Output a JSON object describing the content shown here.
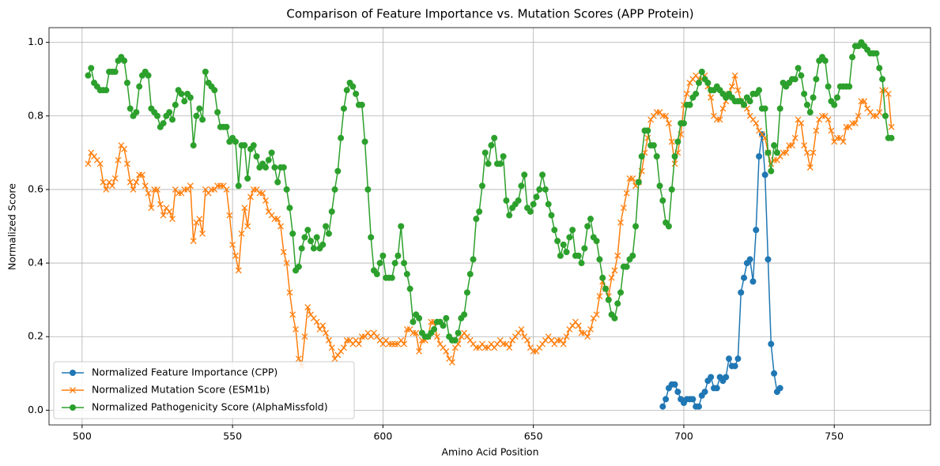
{
  "chart_data": {
    "type": "line",
    "title": "Comparison of Feature Importance vs. Mutation Scores (APP Protein)",
    "x_label": "Amino Acid Position",
    "y_label": "Normalized Score",
    "xlim": [
      489,
      782
    ],
    "ylim": [
      -0.04,
      1.04
    ],
    "xticks": [
      500,
      550,
      600,
      650,
      700,
      750
    ],
    "yticks": [
      {
        "value": 0,
        "label": "0.0"
      },
      {
        "value": 0.2,
        "label": "0.2"
      },
      {
        "value": 0.4,
        "label": "0.4"
      },
      {
        "value": 0.6,
        "label": "0.6"
      },
      {
        "value": 0.8,
        "label": "0.8"
      },
      {
        "value": 1,
        "label": "1.0"
      }
    ],
    "grid": true,
    "legend": "lower left",
    "x": [
      502,
      503,
      504,
      505,
      506,
      507,
      508,
      509,
      510,
      511,
      512,
      513,
      514,
      515,
      516,
      517,
      518,
      519,
      520,
      521,
      522,
      523,
      524,
      525,
      526,
      527,
      528,
      529,
      530,
      531,
      532,
      533,
      534,
      535,
      536,
      537,
      538,
      539,
      540,
      541,
      542,
      543,
      544,
      545,
      546,
      547,
      548,
      549,
      550,
      551,
      552,
      553,
      554,
      555,
      556,
      557,
      558,
      559,
      560,
      561,
      562,
      563,
      564,
      565,
      566,
      567,
      568,
      569,
      570,
      571,
      572,
      573,
      574,
      575,
      576,
      577,
      578,
      579,
      580,
      581,
      582,
      583,
      584,
      585,
      586,
      587,
      588,
      589,
      590,
      591,
      592,
      593,
      594,
      595,
      596,
      597,
      598,
      599,
      600,
      601,
      602,
      603,
      604,
      605,
      606,
      607,
      608,
      609,
      610,
      611,
      612,
      613,
      614,
      615,
      616,
      617,
      618,
      619,
      620,
      621,
      622,
      623,
      624,
      625,
      626,
      627,
      628,
      629,
      630,
      631,
      632,
      633,
      634,
      635,
      636,
      637,
      638,
      639,
      640,
      641,
      642,
      643,
      644,
      645,
      646,
      647,
      648,
      649,
      650,
      651,
      652,
      653,
      654,
      655,
      656,
      657,
      658,
      659,
      660,
      661,
      662,
      663,
      664,
      665,
      666,
      667,
      668,
      669,
      670,
      671,
      672,
      673,
      674,
      675,
      676,
      677,
      678,
      679,
      680,
      681,
      682,
      683,
      684,
      685,
      686,
      687,
      688,
      689,
      690,
      691,
      692,
      693,
      694,
      695,
      696,
      697,
      698,
      699,
      700,
      701,
      702,
      703,
      704,
      705,
      706,
      707,
      708,
      709,
      710,
      711,
      712,
      713,
      714,
      715,
      716,
      717,
      718,
      719,
      720,
      721,
      722,
      723,
      724,
      725,
      726,
      727,
      728,
      729,
      730,
      731,
      732,
      733,
      734,
      735,
      736,
      737,
      738,
      739,
      740,
      741,
      742,
      743,
      744,
      745,
      746,
      747,
      748,
      749,
      750,
      751,
      752,
      753,
      754,
      755,
      756,
      757,
      758,
      759,
      760,
      761,
      762,
      763,
      764,
      765,
      766,
      767,
      768,
      769
    ],
    "series": [
      {
        "name": "Normalized Feature Importance (CPP)",
        "color": "#1f77b4",
        "marker": "o",
        "x": [
          693,
          694,
          695,
          696,
          697,
          698,
          699,
          700,
          701,
          702,
          703,
          704,
          705,
          706,
          707,
          708,
          709,
          710,
          711,
          712,
          713,
          714,
          715,
          716,
          717,
          718,
          719,
          720,
          721,
          722,
          723,
          724,
          725,
          726,
          727,
          728,
          729,
          730,
          731,
          732
        ],
        "values": [
          0.01,
          0.03,
          0.06,
          0.07,
          0.07,
          0.05,
          0.03,
          0.02,
          0.03,
          0.03,
          0.03,
          0.01,
          0.01,
          0.04,
          0.05,
          0.08,
          0.09,
          0.06,
          0.06,
          0.09,
          0.08,
          0.09,
          0.14,
          0.12,
          0.12,
          0.14,
          0.32,
          0.36,
          0.4,
          0.41,
          0.35,
          0.49,
          0.69,
          0.75,
          0.64,
          0.41,
          0.18,
          0.1,
          0.05,
          0.06
        ]
      },
      {
        "name": "Normalized Mutation Score (ESM1b)",
        "color": "#ff7f0e",
        "marker": "x",
        "values": [
          0.67,
          0.7,
          0.69,
          0.68,
          0.67,
          0.62,
          0.6,
          0.62,
          0.61,
          0.63,
          0.68,
          0.72,
          0.71,
          0.67,
          0.62,
          0.6,
          0.62,
          0.64,
          0.64,
          0.61,
          0.59,
          0.55,
          0.6,
          0.6,
          0.56,
          0.53,
          0.55,
          0.54,
          0.52,
          0.6,
          0.59,
          0.59,
          0.6,
          0.6,
          0.61,
          0.46,
          0.51,
          0.52,
          0.48,
          0.6,
          0.59,
          0.6,
          0.6,
          0.61,
          0.61,
          0.61,
          0.6,
          0.53,
          0.45,
          0.42,
          0.38,
          0.48,
          0.55,
          0.5,
          0.58,
          0.6,
          0.6,
          0.59,
          0.59,
          0.57,
          0.54,
          0.53,
          0.52,
          0.52,
          0.5,
          0.43,
          0.4,
          0.32,
          0.26,
          0.22,
          0.14,
          0.12,
          0.2,
          0.28,
          0.26,
          0.25,
          0.24,
          0.22,
          0.23,
          0.21,
          0.19,
          0.17,
          0.14,
          0.15,
          0.16,
          0.17,
          0.19,
          0.19,
          0.18,
          0.19,
          0.18,
          0.2,
          0.2,
          0.21,
          0.2,
          0.21,
          0.2,
          0.19,
          0.18,
          0.19,
          0.18,
          0.18,
          0.18,
          0.18,
          0.19,
          0.18,
          0.22,
          0.22,
          0.21,
          0.21,
          0.16,
          0.19,
          0.19,
          0.2,
          0.24,
          0.24,
          0.2,
          0.18,
          0.17,
          0.16,
          0.14,
          0.13,
          0.17,
          0.18,
          0.2,
          0.21,
          0.2,
          0.19,
          0.18,
          0.17,
          0.17,
          0.18,
          0.17,
          0.17,
          0.18,
          0.17,
          0.18,
          0.19,
          0.18,
          0.18,
          0.17,
          0.19,
          0.2,
          0.21,
          0.22,
          0.2,
          0.19,
          0.17,
          0.16,
          0.16,
          0.17,
          0.18,
          0.19,
          0.2,
          0.19,
          0.18,
          0.19,
          0.19,
          0.18,
          0.2,
          0.22,
          0.23,
          0.24,
          0.23,
          0.21,
          0.21,
          0.2,
          0.22,
          0.25,
          0.26,
          0.31,
          0.35,
          0.33,
          0.31,
          0.36,
          0.38,
          0.42,
          0.51,
          0.55,
          0.59,
          0.63,
          0.63,
          0.61,
          0.62,
          0.65,
          0.7,
          0.74,
          0.79,
          0.8,
          0.81,
          0.81,
          0.8,
          0.8,
          0.78,
          0.73,
          0.67,
          0.7,
          0.75,
          0.83,
          0.86,
          0.89,
          0.9,
          0.91,
          0.9,
          0.9,
          0.91,
          0.88,
          0.85,
          0.8,
          0.79,
          0.79,
          0.82,
          0.84,
          0.86,
          0.88,
          0.91,
          0.87,
          0.84,
          0.83,
          0.82,
          0.8,
          0.79,
          0.78,
          0.76,
          0.75,
          0.74,
          0.7,
          0.67,
          0.68,
          0.68,
          0.69,
          0.7,
          0.7,
          0.72,
          0.72,
          0.74,
          0.79,
          0.78,
          0.72,
          0.7,
          0.66,
          0.7,
          0.76,
          0.79,
          0.8,
          0.8,
          0.79,
          0.76,
          0.73,
          0.74,
          0.74,
          0.73,
          0.77,
          0.77,
          0.78,
          0.78,
          0.8,
          0.84,
          0.84,
          0.82,
          0.81,
          0.8,
          0.8,
          0.81,
          0.87,
          0.87,
          0.86,
          0.77
        ]
      },
      {
        "name": "Normalized Pathogenicity Score (AlphaMissfold)",
        "color": "#2ca02c",
        "marker": "o",
        "values": [
          0.91,
          0.93,
          0.89,
          0.88,
          0.87,
          0.87,
          0.87,
          0.92,
          0.92,
          0.92,
          0.95,
          0.96,
          0.95,
          0.89,
          0.82,
          0.8,
          0.81,
          0.88,
          0.91,
          0.92,
          0.91,
          0.82,
          0.81,
          0.8,
          0.77,
          0.78,
          0.8,
          0.81,
          0.79,
          0.83,
          0.87,
          0.86,
          0.84,
          0.86,
          0.85,
          0.72,
          0.8,
          0.82,
          0.79,
          0.92,
          0.89,
          0.88,
          0.87,
          0.81,
          0.77,
          0.77,
          0.77,
          0.73,
          0.74,
          0.73,
          0.61,
          0.72,
          0.72,
          0.63,
          0.71,
          0.72,
          0.69,
          0.66,
          0.67,
          0.66,
          0.68,
          0.7,
          0.66,
          0.62,
          0.66,
          0.66,
          0.6,
          0.55,
          0.48,
          0.38,
          0.39,
          0.44,
          0.47,
          0.49,
          0.46,
          0.44,
          0.47,
          0.44,
          0.45,
          0.5,
          0.48,
          0.54,
          0.6,
          0.65,
          0.74,
          0.82,
          0.87,
          0.89,
          0.88,
          0.86,
          0.83,
          0.83,
          0.73,
          0.6,
          0.47,
          0.38,
          0.37,
          0.4,
          0.42,
          0.36,
          0.36,
          0.36,
          0.4,
          0.42,
          0.5,
          0.4,
          0.37,
          0.33,
          0.24,
          0.26,
          0.25,
          0.21,
          0.2,
          0.2,
          0.21,
          0.22,
          0.24,
          0.24,
          0.23,
          0.25,
          0.2,
          0.19,
          0.19,
          0.21,
          0.25,
          0.26,
          0.32,
          0.37,
          0.41,
          0.52,
          0.54,
          0.61,
          0.7,
          0.67,
          0.72,
          0.74,
          0.67,
          0.67,
          0.69,
          0.57,
          0.53,
          0.55,
          0.56,
          0.57,
          0.61,
          0.64,
          0.55,
          0.54,
          0.56,
          0.58,
          0.6,
          0.64,
          0.6,
          0.56,
          0.53,
          0.49,
          0.46,
          0.42,
          0.45,
          0.43,
          0.47,
          0.49,
          0.42,
          0.42,
          0.4,
          0.44,
          0.5,
          0.52,
          0.47,
          0.46,
          0.41,
          0.36,
          0.33,
          0.3,
          0.26,
          0.25,
          0.29,
          0.32,
          0.39,
          0.39,
          0.41,
          0.42,
          0.5,
          0.62,
          0.69,
          0.76,
          0.76,
          0.72,
          0.72,
          0.69,
          0.61,
          0.57,
          0.51,
          0.5,
          0.6,
          0.69,
          0.73,
          0.78,
          0.78,
          0.83,
          0.83,
          0.85,
          0.86,
          0.89,
          0.92,
          0.9,
          0.89,
          0.87,
          0.87,
          0.88,
          0.87,
          0.86,
          0.85,
          0.86,
          0.85,
          0.84,
          0.84,
          0.84,
          0.83,
          0.85,
          0.84,
          0.86,
          0.86,
          0.87,
          0.82,
          0.82,
          0.7,
          0.65,
          0.72,
          0.7,
          0.82,
          0.89,
          0.88,
          0.89,
          0.9,
          0.9,
          0.93,
          0.91,
          0.86,
          0.83,
          0.81,
          0.85,
          0.9,
          0.95,
          0.96,
          0.95,
          0.88,
          0.84,
          0.83,
          0.85,
          0.88,
          0.88,
          0.88,
          0.88,
          0.96,
          0.99,
          0.99,
          1.0,
          0.99,
          0.98,
          0.97,
          0.97,
          0.97,
          0.93,
          0.9,
          0.8,
          0.74,
          0.74
        ]
      }
    ]
  }
}
